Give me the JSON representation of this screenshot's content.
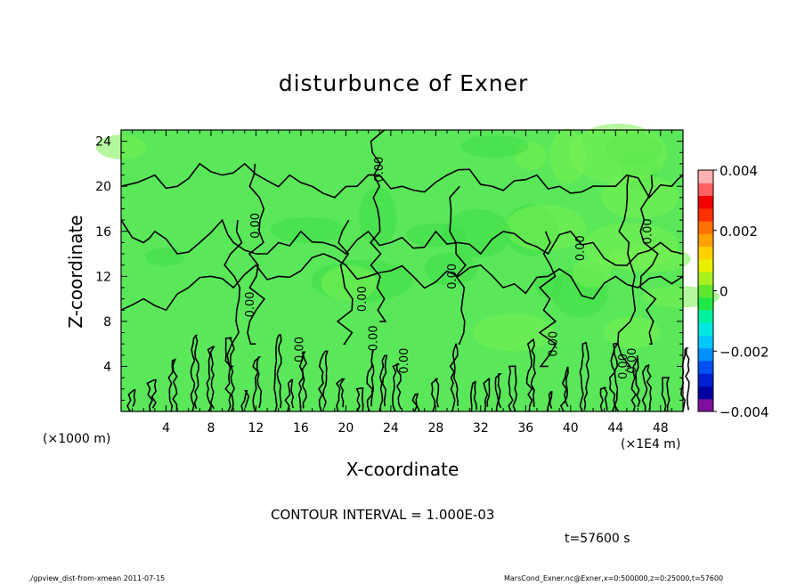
{
  "chart_data": {
    "type": "heatmap",
    "title": "disturbunce of Exner",
    "xlabel": "X-coordinate",
    "ylabel": "Z-coordinate",
    "x_unit_label": "(×1E4 m)",
    "y_unit_label": "(×1000 m)",
    "xlim": [
      0,
      50
    ],
    "ylim": [
      0,
      25
    ],
    "x_ticks": [
      4,
      8,
      12,
      16,
      20,
      24,
      28,
      32,
      36,
      40,
      44,
      48
    ],
    "y_ticks": [
      4,
      8,
      12,
      16,
      20,
      24
    ],
    "colorbar": {
      "min": -0.004,
      "max": 0.004,
      "tick_values": [
        0.004,
        0.002,
        0,
        -0.002,
        -0.004
      ],
      "tick_labels": [
        "0.004",
        "0.002",
        "0",
        "−0.002",
        "−0.004"
      ],
      "colors": [
        "#7f0f9f",
        "#0000a0",
        "#0020d0",
        "#0050f0",
        "#0090ff",
        "#00c8ff",
        "#00e8e0",
        "#00f0a0",
        "#20e848",
        "#60e830",
        "#a8f020",
        "#e8f000",
        "#ffd000",
        "#ffa000",
        "#ff7000",
        "#ff3000",
        "#f00000",
        "#ff6060",
        "#ffb0b0"
      ]
    },
    "contour_interval": "CONTOUR INTERVAL = 1.000E-03",
    "contour_labels": [
      "0.00",
      "0.00",
      "0.00",
      "0.00",
      "0.00",
      "0.00",
      "0.00",
      "0.00",
      "0.00",
      "0.00",
      "0.00",
      "0.00",
      "0.00"
    ],
    "time_label": "t=57600 s"
  },
  "footer": {
    "left": "./gpview_dist-from-xmean  2011-07-15",
    "right": "MarsCond_Exner.nc@Exner,x=0:500000,z=0:25000,t=57600"
  },
  "colors": {
    "field_green": "#5ae85a",
    "field_light": "#78f050",
    "field_dark": "#40dc48"
  }
}
